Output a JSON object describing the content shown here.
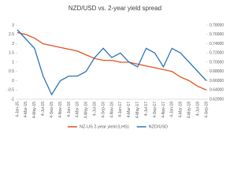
{
  "chart_data": {
    "type": "line",
    "title": "NZD/USD vs. 2-year yield spread",
    "categories": [
      "4-Jan-15",
      "4-Mar-15",
      "4-May-15",
      "4-Jul-15",
      "4-Sep-15",
      "4-Nov-15",
      "4-Jan-16",
      "4-Mar-16",
      "4-May-16",
      "4-Jul-16",
      "4-Sep-16",
      "4-Nov-16",
      "4-Jan-17",
      "4-Mar-17",
      "4-May-17",
      "4-Jul-17",
      "4-Sep-17",
      "4-Nov-17",
      "4-Jan-18",
      "4-Mar-18",
      "4-May-18",
      "4-Jul-18",
      "4-Sep-18"
    ],
    "series": [
      {
        "name": "NZ-US 2-year yield (LHS)",
        "color": "#e0531f",
        "values": [
          2.6,
          2.5,
          2.3,
          2.0,
          1.9,
          1.8,
          1.7,
          1.6,
          1.4,
          1.2,
          1.1,
          1.1,
          1.0,
          1.0,
          0.9,
          0.8,
          0.7,
          0.6,
          0.5,
          0.2,
          0.0,
          -0.3,
          -0.5
        ]
      },
      {
        "name": "NZD/USD",
        "color": "#2e75b6",
        "axis": "y2",
        "values": [
          0.77,
          0.75,
          0.73,
          0.67,
          0.63,
          0.66,
          0.67,
          0.67,
          0.68,
          0.71,
          0.73,
          0.71,
          0.72,
          0.7,
          0.69,
          0.73,
          0.72,
          0.69,
          0.73,
          0.72,
          0.7,
          0.68,
          0.66
        ]
      }
    ],
    "ylim": [
      -1,
      3
    ],
    "yticks": [
      -1,
      -0.5,
      0,
      0.5,
      1,
      1.5,
      2,
      2.5,
      3
    ],
    "y2lim": [
      0.62,
      0.78
    ],
    "y2ticks": [
      {
        "value": 0.62,
        "label": "0.62000"
      },
      {
        "value": 0.64,
        "label": "0.64000"
      },
      {
        "value": 0.66,
        "label": "0.66000"
      },
      {
        "value": 0.68,
        "label": "0.68000"
      },
      {
        "value": 0.7,
        "label": "0.70000"
      },
      {
        "value": 0.72,
        "label": "0.72000"
      },
      {
        "value": 0.74,
        "label": "0.74000"
      },
      {
        "value": 0.76,
        "label": "0.76000"
      },
      {
        "value": 0.78,
        "label": "0.78000"
      }
    ],
    "legend": "bottom"
  }
}
